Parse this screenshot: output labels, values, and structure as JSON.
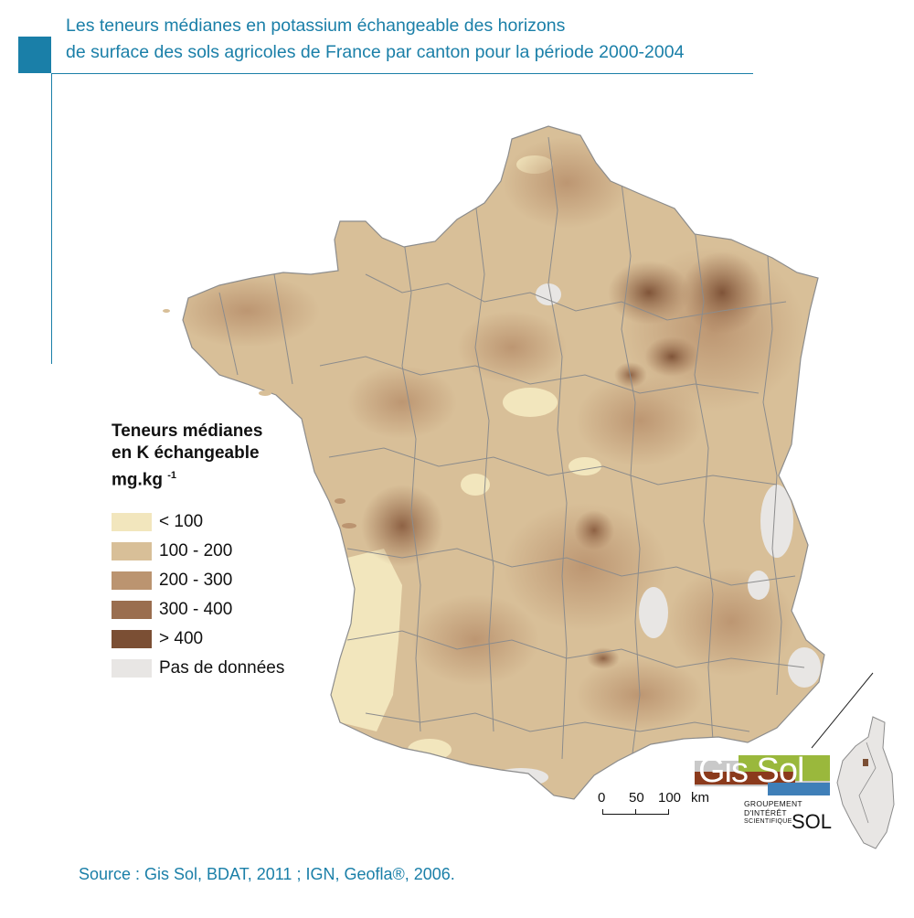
{
  "title": {
    "line1": "Les teneurs médianes en potassium échangeable des horizons",
    "line2": "de surface des sols agricoles de France par canton pour la période 2000-2004"
  },
  "colors": {
    "accent": "#1a7fa8",
    "class_lt100": "#f2e6bd",
    "class_100_200": "#d8bf98",
    "class_200_300": "#bb9470",
    "class_300_400": "#9a6e4f",
    "class_gt400": "#7b4f34",
    "class_no_data": "#e8e6e4",
    "boundary": "#8c8c8c"
  },
  "legend": {
    "title_line1": "Teneurs médianes",
    "title_line2": "en K échangeable",
    "title_line3": "mg.kg",
    "title_exponent": "-1",
    "items": [
      {
        "label": "< 100",
        "color": "#f2e6bd"
      },
      {
        "label": "100 - 200",
        "color": "#d8bf98"
      },
      {
        "label": "200 - 300",
        "color": "#bb9470"
      },
      {
        "label": "300 - 400",
        "color": "#9a6e4f"
      },
      {
        "label": "> 400",
        "color": "#7b4f34"
      },
      {
        "label": "Pas de données",
        "color": "#e8e6e4"
      }
    ]
  },
  "scale_bar": {
    "labels": [
      "0",
      "50",
      "100"
    ],
    "unit": "km"
  },
  "logo": {
    "name": "Gis Sol",
    "sub_line1": "GROUPEMENT",
    "sub_line2": "D'INTÉRÊT",
    "sub_line3": "SCIENTIFIQUE",
    "sub_sol": "SOL"
  },
  "source": "Source : Gis Sol, BDAT, 2011 ; IGN, Geofla®, 2006."
}
